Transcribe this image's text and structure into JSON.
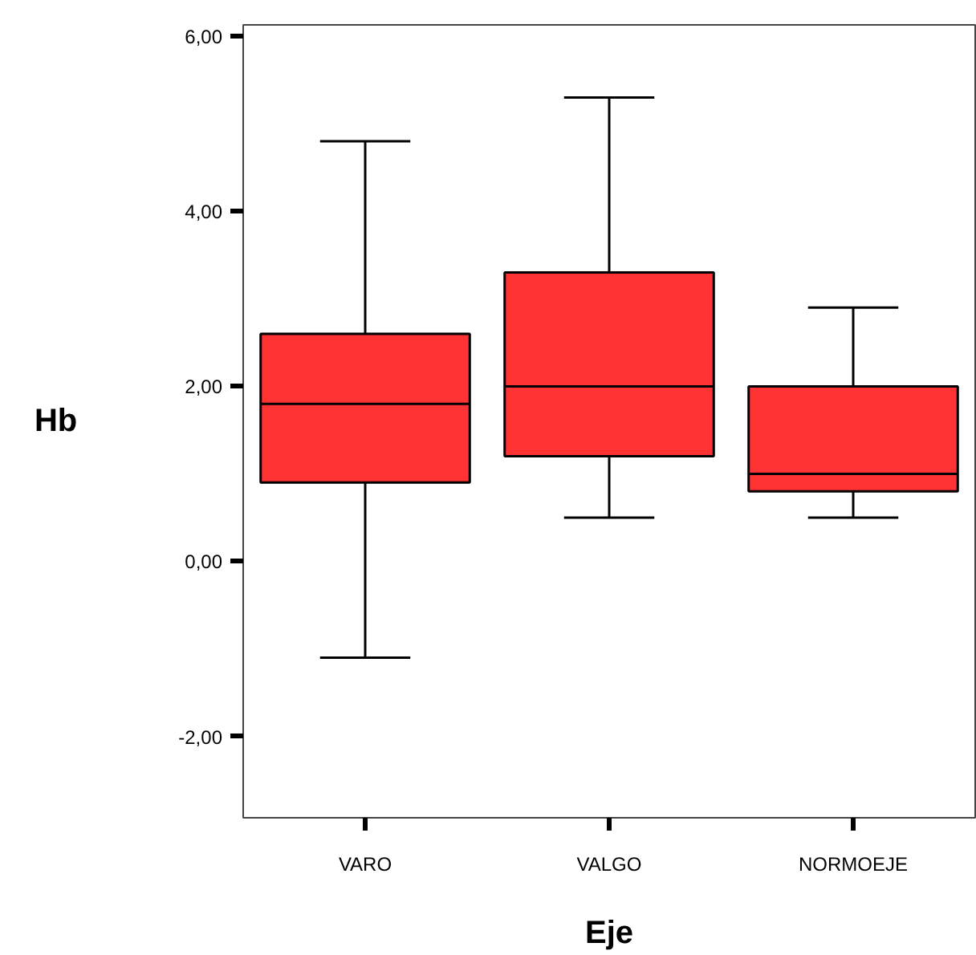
{
  "chart_data": {
    "type": "box",
    "xlabel": "Eje",
    "ylabel": "Hb",
    "categories": [
      "VARO",
      "VALGO",
      "NORMOEJE"
    ],
    "series": [
      {
        "color": "#ff3333",
        "boxes": [
          {
            "low": -1.1,
            "q1": 0.9,
            "median": 1.8,
            "q3": 2.6,
            "high": 4.8
          },
          {
            "low": 0.5,
            "q1": 1.2,
            "median": 2.0,
            "q3": 3.3,
            "high": 5.3
          },
          {
            "low": 0.5,
            "q1": 0.8,
            "median": 1.0,
            "q3": 2.0,
            "high": 2.9
          }
        ]
      }
    ],
    "ylim": [
      -2.93,
      6.13
    ],
    "yticks": [
      {
        "value": -2,
        "label": "-2,00"
      },
      {
        "value": 0,
        "label": "0,00"
      },
      {
        "value": 2,
        "label": "2,00"
      },
      {
        "value": 4,
        "label": "4,00"
      },
      {
        "value": 6,
        "label": "6,00"
      }
    ],
    "grid": false
  }
}
